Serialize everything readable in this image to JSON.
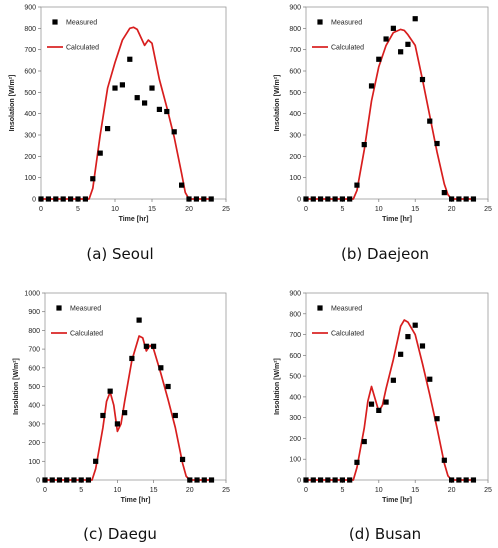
{
  "chart_data": [
    {
      "type": "scatter",
      "caption": "(a)  Seoul",
      "xlabel": "Time [hr]",
      "ylabel": "Insolation [W/m²]",
      "xlim": [
        0,
        25
      ],
      "ylim": [
        0,
        900
      ],
      "xticks": [
        0,
        5,
        10,
        15,
        20,
        25
      ],
      "yticks": [
        0,
        100,
        200,
        300,
        400,
        500,
        600,
        700,
        800,
        900
      ],
      "legend": "top-left",
      "series": [
        {
          "name": "Measured",
          "kind": "markers",
          "color": "#000000",
          "x": [
            0,
            1,
            2,
            3,
            4,
            5,
            6,
            7,
            8,
            9,
            10,
            11,
            12,
            13,
            14,
            15,
            16,
            17,
            18,
            19,
            20,
            21,
            22,
            23
          ],
          "y": [
            0,
            0,
            0,
            0,
            0,
            0,
            0,
            95,
            215,
            330,
            520,
            535,
            655,
            475,
            450,
            520,
            420,
            410,
            315,
            65,
            0,
            0,
            0,
            0
          ]
        },
        {
          "name": "Calculated",
          "kind": "line",
          "color": "#d81e1e",
          "x": [
            0,
            5,
            6,
            6.5,
            7,
            8,
            9,
            10,
            11,
            12,
            12.5,
            13,
            14,
            14.5,
            15,
            16,
            17,
            18,
            19,
            19.5,
            20,
            23
          ],
          "y": [
            0,
            0,
            0,
            0,
            50,
            300,
            520,
            640,
            745,
            800,
            805,
            795,
            720,
            745,
            730,
            560,
            430,
            290,
            120,
            30,
            0,
            0
          ]
        }
      ]
    },
    {
      "type": "scatter",
      "caption": "(b)  Daejeon",
      "xlabel": "Time [hr]",
      "ylabel": "Insolation [W/m²]",
      "xlim": [
        0,
        25
      ],
      "ylim": [
        0,
        900
      ],
      "xticks": [
        0,
        5,
        10,
        15,
        20,
        25
      ],
      "yticks": [
        0,
        100,
        200,
        300,
        400,
        500,
        600,
        700,
        800,
        900
      ],
      "legend": "top-left",
      "series": [
        {
          "name": "Measured",
          "kind": "markers",
          "color": "#000000",
          "x": [
            0,
            1,
            2,
            3,
            4,
            5,
            6,
            7,
            8,
            9,
            10,
            11,
            12,
            13,
            14,
            15,
            16,
            17,
            18,
            19,
            20,
            21,
            22,
            23
          ],
          "y": [
            0,
            0,
            0,
            0,
            0,
            0,
            0,
            65,
            255,
            530,
            655,
            750,
            800,
            690,
            725,
            845,
            560,
            365,
            260,
            30,
            0,
            0,
            0,
            0
          ]
        },
        {
          "name": "Calculated",
          "kind": "line",
          "color": "#d81e1e",
          "x": [
            0,
            5,
            6,
            6.5,
            7,
            8,
            9,
            10,
            11,
            12,
            13,
            13.5,
            14,
            15,
            16,
            17,
            18,
            19,
            19.5,
            20,
            23
          ],
          "y": [
            0,
            0,
            0,
            0,
            40,
            230,
            460,
            620,
            720,
            780,
            795,
            790,
            770,
            720,
            560,
            390,
            220,
            70,
            20,
            0,
            0
          ]
        }
      ]
    },
    {
      "type": "scatter",
      "caption": "(c)  Daegu",
      "xlabel": "Time [hr]",
      "ylabel": "Insolation [W/m²]",
      "xlim": [
        0,
        25
      ],
      "ylim": [
        0,
        1000
      ],
      "xticks": [
        0,
        5,
        10,
        15,
        20,
        25
      ],
      "yticks": [
        0,
        100,
        200,
        300,
        400,
        500,
        600,
        700,
        800,
        900,
        1000
      ],
      "legend": "top-left",
      "series": [
        {
          "name": "Measured",
          "kind": "markers",
          "color": "#000000",
          "x": [
            0,
            1,
            2,
            3,
            4,
            5,
            6,
            7,
            8,
            9,
            10,
            11,
            12,
            13,
            14,
            15,
            16,
            17,
            18,
            19,
            20,
            21,
            22,
            23
          ],
          "y": [
            0,
            0,
            0,
            0,
            0,
            0,
            0,
            100,
            345,
            475,
            300,
            360,
            650,
            855,
            715,
            715,
            600,
            500,
            345,
            110,
            0,
            0,
            0,
            0
          ]
        },
        {
          "name": "Calculated",
          "kind": "line",
          "color": "#d81e1e",
          "x": [
            0,
            5,
            6,
            6.5,
            7,
            8,
            8.5,
            9,
            9.5,
            10,
            10.5,
            11,
            12,
            13,
            13.5,
            14,
            14.5,
            15,
            16,
            17,
            18,
            19,
            19.5,
            20,
            23
          ],
          "y": [
            0,
            0,
            0,
            0,
            60,
            280,
            420,
            470,
            400,
            260,
            300,
            420,
            640,
            770,
            760,
            690,
            720,
            700,
            570,
            430,
            280,
            90,
            20,
            0,
            0
          ]
        }
      ]
    },
    {
      "type": "scatter",
      "caption": "(d)  Busan",
      "xlabel": "Time [hr]",
      "ylabel": "Insolation [W/m²]",
      "xlim": [
        0,
        25
      ],
      "ylim": [
        0,
        900
      ],
      "xticks": [
        0,
        5,
        10,
        15,
        20,
        25
      ],
      "yticks": [
        0,
        100,
        200,
        300,
        400,
        500,
        600,
        700,
        800,
        900
      ],
      "legend": "top-left",
      "series": [
        {
          "name": "Measured",
          "kind": "markers",
          "color": "#000000",
          "x": [
            0,
            1,
            2,
            3,
            4,
            5,
            6,
            7,
            8,
            9,
            10,
            11,
            12,
            13,
            14,
            15,
            16,
            17,
            18,
            19,
            20,
            21,
            22,
            23
          ],
          "y": [
            0,
            0,
            0,
            0,
            0,
            0,
            0,
            85,
            185,
            365,
            335,
            375,
            480,
            605,
            690,
            745,
            645,
            485,
            295,
            95,
            0,
            0,
            0,
            0
          ]
        },
        {
          "name": "Calculated",
          "kind": "line",
          "color": "#d81e1e",
          "x": [
            0,
            5,
            6,
            6.5,
            7,
            8,
            8.5,
            9,
            9.5,
            10,
            10.5,
            11,
            12,
            13,
            13.5,
            14,
            15,
            16,
            17,
            18,
            19,
            19.5,
            20,
            23
          ],
          "y": [
            0,
            0,
            0,
            0,
            60,
            250,
            380,
            450,
            390,
            330,
            360,
            440,
            580,
            740,
            770,
            760,
            700,
            560,
            410,
            250,
            80,
            20,
            0,
            0
          ]
        }
      ]
    }
  ]
}
